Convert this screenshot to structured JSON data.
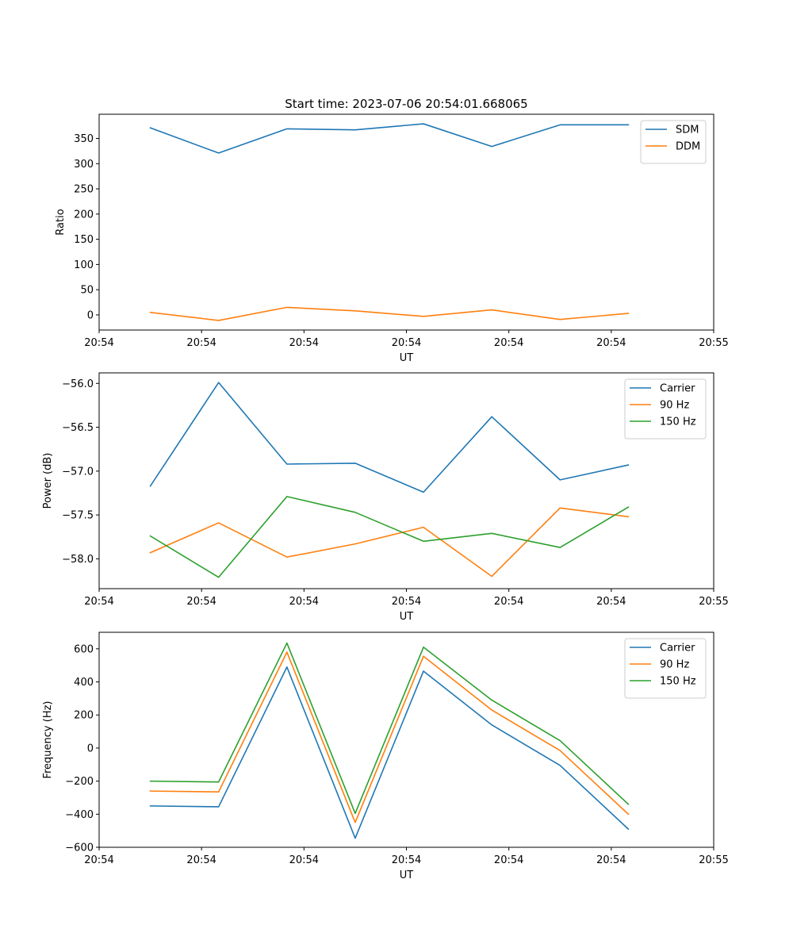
{
  "chart_data": [
    {
      "type": "line",
      "title": "Start time: 2023-07-06 20:54:01.668065",
      "xlabel": "UT",
      "ylabel": "Ratio",
      "legend_position": "upper-right",
      "grid": false,
      "x": [
        1,
        2,
        3,
        4,
        5,
        6,
        7,
        8
      ],
      "xlim": [
        0.25,
        9.25
      ],
      "xticks": [
        {
          "pos": 0.25,
          "label": "20:54"
        },
        {
          "pos": 1.75,
          "label": "20:54"
        },
        {
          "pos": 3.25,
          "label": "20:54"
        },
        {
          "pos": 4.75,
          "label": "20:54"
        },
        {
          "pos": 6.25,
          "label": "20:54"
        },
        {
          "pos": 7.75,
          "label": "20:54"
        },
        {
          "pos": 9.25,
          "label": "20:55"
        }
      ],
      "ylim": [
        -30,
        398
      ],
      "yticks": [
        0,
        50,
        100,
        150,
        200,
        250,
        300,
        350
      ],
      "ytick_labels": [
        "0",
        "50",
        "100",
        "150",
        "200",
        "250",
        "300",
        "350"
      ],
      "series": [
        {
          "name": "SDM",
          "color": "#1f77b4",
          "values": [
            371,
            321,
            369,
            367,
            379,
            334,
            377,
            377
          ]
        },
        {
          "name": "DDM",
          "color": "#ff7f0e",
          "values": [
            5,
            -11,
            15,
            8,
            -3,
            10,
            -9,
            3
          ]
        }
      ]
    },
    {
      "type": "line",
      "title": "",
      "xlabel": "UT",
      "ylabel": "Power (dB)",
      "legend_position": "upper-right",
      "grid": false,
      "x": [
        1,
        2,
        3,
        4,
        5,
        6,
        7,
        8
      ],
      "xlim": [
        0.25,
        9.25
      ],
      "xticks": [
        {
          "pos": 0.25,
          "label": "20:54"
        },
        {
          "pos": 1.75,
          "label": "20:54"
        },
        {
          "pos": 3.25,
          "label": "20:54"
        },
        {
          "pos": 4.75,
          "label": "20:54"
        },
        {
          "pos": 6.25,
          "label": "20:54"
        },
        {
          "pos": 7.75,
          "label": "20:54"
        },
        {
          "pos": 9.25,
          "label": "20:55"
        }
      ],
      "ylim": [
        -58.34,
        -55.88
      ],
      "yticks": [
        -58.0,
        -57.5,
        -57.0,
        -56.5,
        -56.0
      ],
      "ytick_labels": [
        "−58.0",
        "−57.5",
        "−57.0",
        "−56.5",
        "−56.0"
      ],
      "series": [
        {
          "name": "Carrier",
          "color": "#1f77b4",
          "values": [
            -57.17,
            -55.99,
            -56.92,
            -56.91,
            -57.24,
            -56.38,
            -57.1,
            -56.93
          ]
        },
        {
          "name": "90 Hz",
          "color": "#ff7f0e",
          "values": [
            -57.93,
            -57.59,
            -57.98,
            -57.83,
            -57.64,
            -58.2,
            -57.42,
            -57.52
          ]
        },
        {
          "name": "150 Hz",
          "color": "#2ca02c",
          "values": [
            -57.74,
            -58.21,
            -57.29,
            -57.47,
            -57.8,
            -57.71,
            -57.87,
            -57.41
          ]
        }
      ]
    },
    {
      "type": "line",
      "title": "",
      "xlabel": "UT",
      "ylabel": "Frequency (Hz)",
      "legend_position": "upper-right",
      "grid": false,
      "x": [
        1,
        2,
        3,
        4,
        5,
        6,
        7,
        8
      ],
      "xlim": [
        0.25,
        9.25
      ],
      "xticks": [
        {
          "pos": 0.25,
          "label": "20:54"
        },
        {
          "pos": 1.75,
          "label": "20:54"
        },
        {
          "pos": 3.25,
          "label": "20:54"
        },
        {
          "pos": 4.75,
          "label": "20:54"
        },
        {
          "pos": 6.25,
          "label": "20:54"
        },
        {
          "pos": 7.75,
          "label": "20:54"
        },
        {
          "pos": 9.25,
          "label": "20:55"
        }
      ],
      "ylim": [
        -600,
        700
      ],
      "yticks": [
        -600,
        -400,
        -200,
        0,
        200,
        400,
        600
      ],
      "ytick_labels": [
        "−600",
        "−400",
        "−200",
        "0",
        "200",
        "400",
        "600"
      ],
      "series": [
        {
          "name": "Carrier",
          "color": "#1f77b4",
          "values": [
            -350,
            -355,
            490,
            -545,
            465,
            140,
            -105,
            -490
          ]
        },
        {
          "name": "90 Hz",
          "color": "#ff7f0e",
          "values": [
            -260,
            -265,
            580,
            -450,
            555,
            230,
            -15,
            -400
          ]
        },
        {
          "name": "150 Hz",
          "color": "#2ca02c",
          "values": [
            -200,
            -205,
            635,
            -395,
            610,
            290,
            45,
            -340
          ]
        }
      ]
    }
  ]
}
